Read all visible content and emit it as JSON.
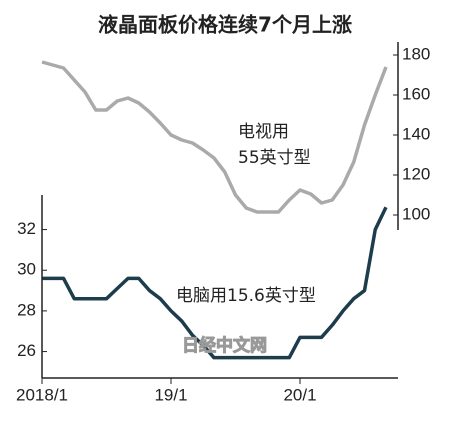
{
  "chart_data": {
    "type": "line",
    "title": "液晶面板价格连续7个月上涨",
    "annotations": [
      "电视用",
      "55英寸型",
      "电脑用15.6英寸型",
      "日经中文网"
    ],
    "categories": [
      "2018/1",
      null,
      null,
      null,
      null,
      null,
      null,
      null,
      null,
      null,
      null,
      null,
      "19/1",
      null,
      null,
      null,
      null,
      null,
      null,
      null,
      null,
      null,
      null,
      null,
      "20/1",
      null,
      null,
      null,
      null,
      null,
      null,
      null,
      null
    ],
    "series": [
      {
        "name": "电视用55英寸型",
        "color": "#aaaaaa",
        "axis": "y2",
        "values": [
          176.5,
          175,
          173.5,
          167.5,
          161.5,
          152.5,
          152.5,
          157,
          158.5,
          156,
          151.5,
          146,
          140,
          137.5,
          136,
          132.5,
          128.5,
          121.5,
          110,
          103.5,
          101.5,
          101.5,
          101.5,
          107.5,
          112.5,
          110.5,
          106,
          107.5,
          115,
          126.5,
          145,
          160,
          174
        ]
      },
      {
        "name": "电脑用15.6英寸型",
        "color": "#1d3d4c",
        "values": [
          29.6,
          29.6,
          29.6,
          28.6,
          28.6,
          28.6,
          28.6,
          29.1,
          29.6,
          29.6,
          29.0,
          28.6,
          28.0,
          27.5,
          26.8,
          26.3,
          25.7,
          25.7,
          25.7,
          25.7,
          25.7,
          25.7,
          25.7,
          25.7,
          26.7,
          26.7,
          26.7,
          27.3,
          28.0,
          28.6,
          29.0,
          32.0,
          33.1
        ]
      }
    ],
    "ylim": [
      24.7,
      33.7
    ],
    "yticks": [
      26,
      28,
      30,
      32
    ],
    "y2lim": [
      92.5,
      186.5
    ],
    "y2ticks": [
      100,
      120,
      140,
      160,
      180
    ]
  }
}
